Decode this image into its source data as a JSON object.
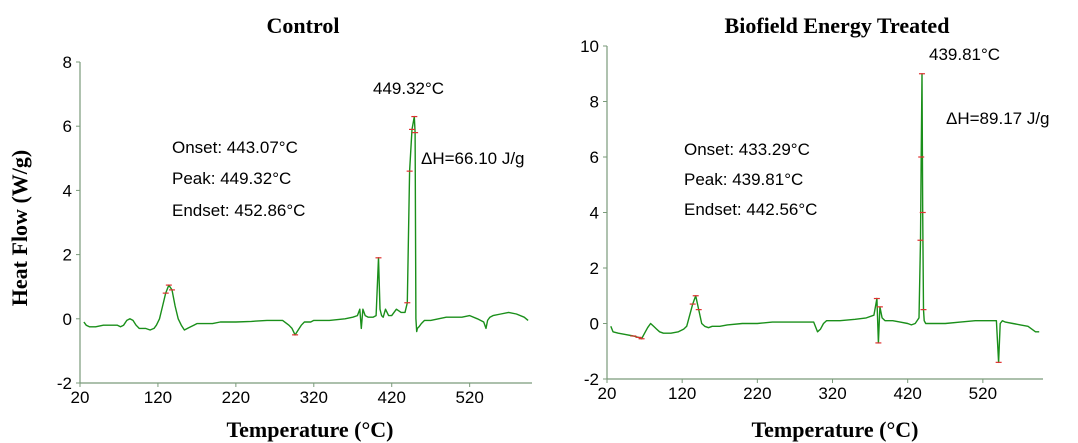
{
  "chart_data": [
    {
      "type": "line",
      "title": "Control",
      "xlabel": "Temperature (°C)",
      "ylabel": "Heat Flow (W/g)",
      "xlim": [
        20,
        600
      ],
      "ylim": [
        -2,
        8
      ],
      "xticks": [
        20,
        120,
        220,
        320,
        420,
        520
      ],
      "yticks": [
        -2,
        0,
        2,
        4,
        6,
        8
      ],
      "grid": false,
      "series_color": "#1a8f1a",
      "marker_color": "#e03030",
      "annotations": {
        "peak_label": "449.32°C",
        "onset": "Onset: 443.07°C",
        "peak": "Peak: 449.32°C",
        "endset": "Endset: 452.86°C",
        "enthalpy": "ΔH=66.10 J/g"
      },
      "series": [
        {
          "x": [
            25,
            28,
            32,
            40,
            50,
            60,
            68,
            72,
            76,
            80,
            84,
            88,
            92,
            96,
            100,
            104,
            110,
            115,
            118,
            122,
            126,
            130,
            134,
            138,
            142,
            146,
            150,
            154,
            158,
            162,
            166,
            170,
            180,
            190,
            200,
            210,
            220,
            240,
            260,
            280,
            288,
            292,
            296,
            300,
            304,
            308,
            312,
            316,
            320,
            340,
            360,
            370,
            376,
            379,
            381,
            383,
            386,
            390,
            396,
            400,
            403,
            405,
            407,
            409,
            412,
            416,
            420,
            426,
            432,
            437,
            440,
            443,
            446,
            449,
            450,
            451,
            452,
            453,
            455,
            458,
            462,
            470,
            480,
            490,
            500,
            510,
            520,
            530,
            538,
            541,
            543,
            546,
            550,
            560,
            570,
            580,
            590,
            595
          ],
          "y": [
            -0.1,
            -0.2,
            -0.25,
            -0.25,
            -0.2,
            -0.2,
            -0.2,
            -0.25,
            -0.2,
            -0.05,
            0.0,
            -0.05,
            -0.2,
            -0.3,
            -0.3,
            -0.3,
            -0.35,
            -0.3,
            -0.2,
            0.0,
            0.4,
            0.8,
            1.05,
            0.9,
            0.4,
            0.0,
            -0.2,
            -0.35,
            -0.3,
            -0.25,
            -0.2,
            -0.15,
            -0.15,
            -0.15,
            -0.1,
            -0.1,
            -0.1,
            -0.08,
            -0.05,
            -0.05,
            -0.2,
            -0.3,
            -0.5,
            -0.35,
            -0.2,
            -0.1,
            -0.1,
            -0.1,
            -0.05,
            -0.05,
            0.0,
            0.05,
            0.1,
            0.3,
            -0.3,
            0.3,
            0.1,
            0.05,
            0.05,
            0.1,
            1.9,
            0.3,
            0.1,
            0.05,
            0.3,
            0.1,
            0.1,
            0.3,
            0.2,
            0.2,
            0.5,
            4.6,
            5.9,
            6.3,
            5.8,
            0.0,
            -0.4,
            -0.3,
            -0.25,
            -0.15,
            -0.05,
            -0.05,
            0.0,
            0.05,
            0.05,
            0.05,
            0.1,
            0.0,
            -0.1,
            -0.3,
            -0.05,
            0.05,
            0.1,
            0.15,
            0.2,
            0.15,
            0.05,
            -0.05
          ]
        }
      ]
    },
    {
      "type": "line",
      "title": "Biofield Energy Treated",
      "xlabel": "Temperature (°C)",
      "ylabel": "",
      "xlim": [
        20,
        600
      ],
      "ylim": [
        -2,
        10
      ],
      "xticks": [
        20,
        120,
        220,
        320,
        420,
        520
      ],
      "yticks": [
        -2,
        0,
        2,
        4,
        6,
        8,
        10
      ],
      "grid": false,
      "series_color": "#1a8f1a",
      "marker_color": "#e03030",
      "annotations": {
        "peak_label": "439.81°C",
        "onset": "Onset: 433.29°C",
        "peak": "Peak: 439.81°C",
        "endset": "Endset: 442.56°C",
        "enthalpy": "ΔH=89.17 J/g"
      },
      "series": [
        {
          "x": [
            25,
            28,
            35,
            45,
            55,
            62,
            66,
            70,
            74,
            78,
            82,
            86,
            90,
            95,
            105,
            115,
            122,
            126,
            130,
            134,
            138,
            142,
            146,
            150,
            155,
            160,
            170,
            180,
            200,
            220,
            240,
            260,
            280,
            295,
            300,
            304,
            308,
            312,
            318,
            330,
            350,
            365,
            375,
            379,
            381,
            383,
            386,
            390,
            400,
            410,
            420,
            425,
            430,
            435,
            437,
            438,
            439,
            440,
            441,
            442,
            444,
            448,
            455,
            470,
            490,
            510,
            530,
            538,
            541,
            543,
            546,
            550,
            560,
            570,
            580,
            590,
            595
          ],
          "y": [
            -0.1,
            -0.3,
            -0.35,
            -0.4,
            -0.45,
            -0.5,
            -0.55,
            -0.35,
            -0.15,
            0.0,
            -0.1,
            -0.2,
            -0.3,
            -0.35,
            -0.35,
            -0.3,
            -0.2,
            -0.1,
            0.3,
            0.7,
            1.0,
            0.5,
            0.0,
            -0.1,
            -0.15,
            -0.1,
            -0.1,
            -0.05,
            0.0,
            0.0,
            0.05,
            0.05,
            0.05,
            0.05,
            -0.3,
            -0.2,
            0.0,
            0.1,
            0.1,
            0.1,
            0.15,
            0.2,
            0.3,
            0.9,
            -0.7,
            0.6,
            0.2,
            0.1,
            0.1,
            0.05,
            0.0,
            -0.05,
            0.0,
            0.2,
            3.0,
            6.0,
            9.0,
            4.0,
            0.5,
            0.1,
            0.0,
            0.0,
            0.0,
            0.0,
            0.05,
            0.1,
            0.1,
            0.1,
            -1.4,
            0.0,
            0.1,
            0.05,
            0.0,
            -0.05,
            -0.1,
            -0.3,
            -0.3
          ]
        }
      ]
    }
  ]
}
